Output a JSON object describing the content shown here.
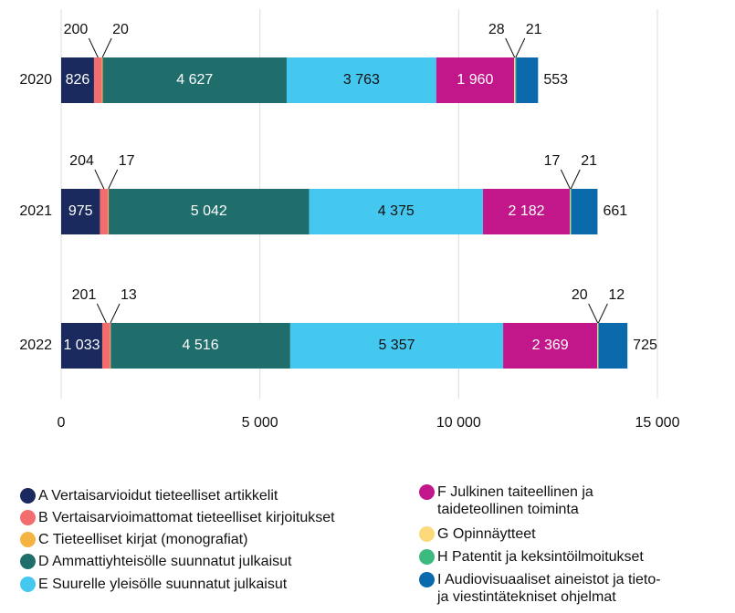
{
  "chart_data": {
    "type": "stacked-barh",
    "categories": [
      "2020",
      "2021",
      "2022"
    ],
    "series": [
      {
        "name": "A Vertaisarvioidut tieteelliset artikkelit",
        "color": "#1b2a5e",
        "values": [
          826,
          975,
          1033
        ],
        "value_labels": [
          "826",
          "975",
          "1 033"
        ]
      },
      {
        "name": "B Vertaisarvioimattomat tieteelliset kirjoitukset",
        "color": "#f26d6d",
        "values": [
          200,
          204,
          201
        ]
      },
      {
        "name": "C Tieteelliset kirjat (monografiat)",
        "color": "#f5b342",
        "values": [
          20,
          17,
          13
        ]
      },
      {
        "name": "D Ammattiyhteisölle suunnatut julkaisut",
        "color": "#1f6e6b",
        "values": [
          4627,
          5042,
          4516
        ],
        "value_labels": [
          "4 627",
          "5 042",
          "4 516"
        ]
      },
      {
        "name": "E Suurelle yleisölle suunnatut julkaisut",
        "color": "#45c8f0",
        "values": [
          3763,
          4375,
          5357
        ],
        "value_labels": [
          "3 763",
          "4 375",
          "5 357"
        ]
      },
      {
        "name": "F Julkinen taiteellinen ja taideteollinen toiminta",
        "color": "#c2178a",
        "values": [
          1960,
          2182,
          2369
        ],
        "value_labels": [
          "1 960",
          "2 182",
          "2 369"
        ]
      },
      {
        "name": "G Opinnäytteet",
        "color": "#fcd97a",
        "values": [
          28,
          17,
          20
        ]
      },
      {
        "name": "H Patentit ja keksintöilmoitukset",
        "color": "#3dba7f",
        "values": [
          21,
          21,
          12
        ]
      },
      {
        "name": "I Audiovisuaaliset aineistot ja tieto- ja viestintätekniset ohjelmat",
        "color": "#0a6aab",
        "values": [
          553,
          661,
          725
        ]
      }
    ],
    "xlim": [
      0,
      15000
    ],
    "xticks": [
      0,
      {
        "value": 5000,
        "label": "5 000"
      },
      {
        "value": 10000,
        "label": "10 000"
      },
      {
        "value": 15000,
        "label": "15 000"
      }
    ],
    "grid": true
  }
}
